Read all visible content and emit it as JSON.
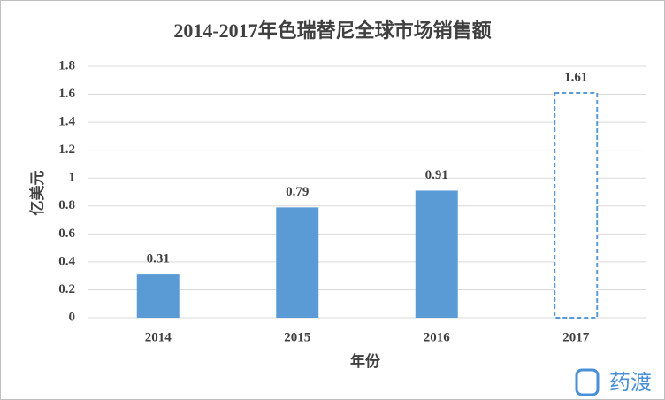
{
  "chart_data": {
    "type": "bar",
    "title": "2014-2017年色瑞替尼全球市场销售额",
    "x_label": "年份",
    "y_label": "亿美元",
    "categories": [
      "2014",
      "2015",
      "2016",
      "2017"
    ],
    "values": [
      0.31,
      0.79,
      0.91,
      1.61
    ],
    "dashed": [
      false,
      false,
      false,
      true
    ],
    "color": "#5b9bd5",
    "ylim": [
      0,
      1.8
    ],
    "yticks": [
      0,
      0.2,
      0.4,
      0.6,
      0.8,
      1,
      1.2,
      1.4,
      1.6,
      1.8
    ],
    "grid": true,
    "data_labels": true
  },
  "watermark": "药渡"
}
